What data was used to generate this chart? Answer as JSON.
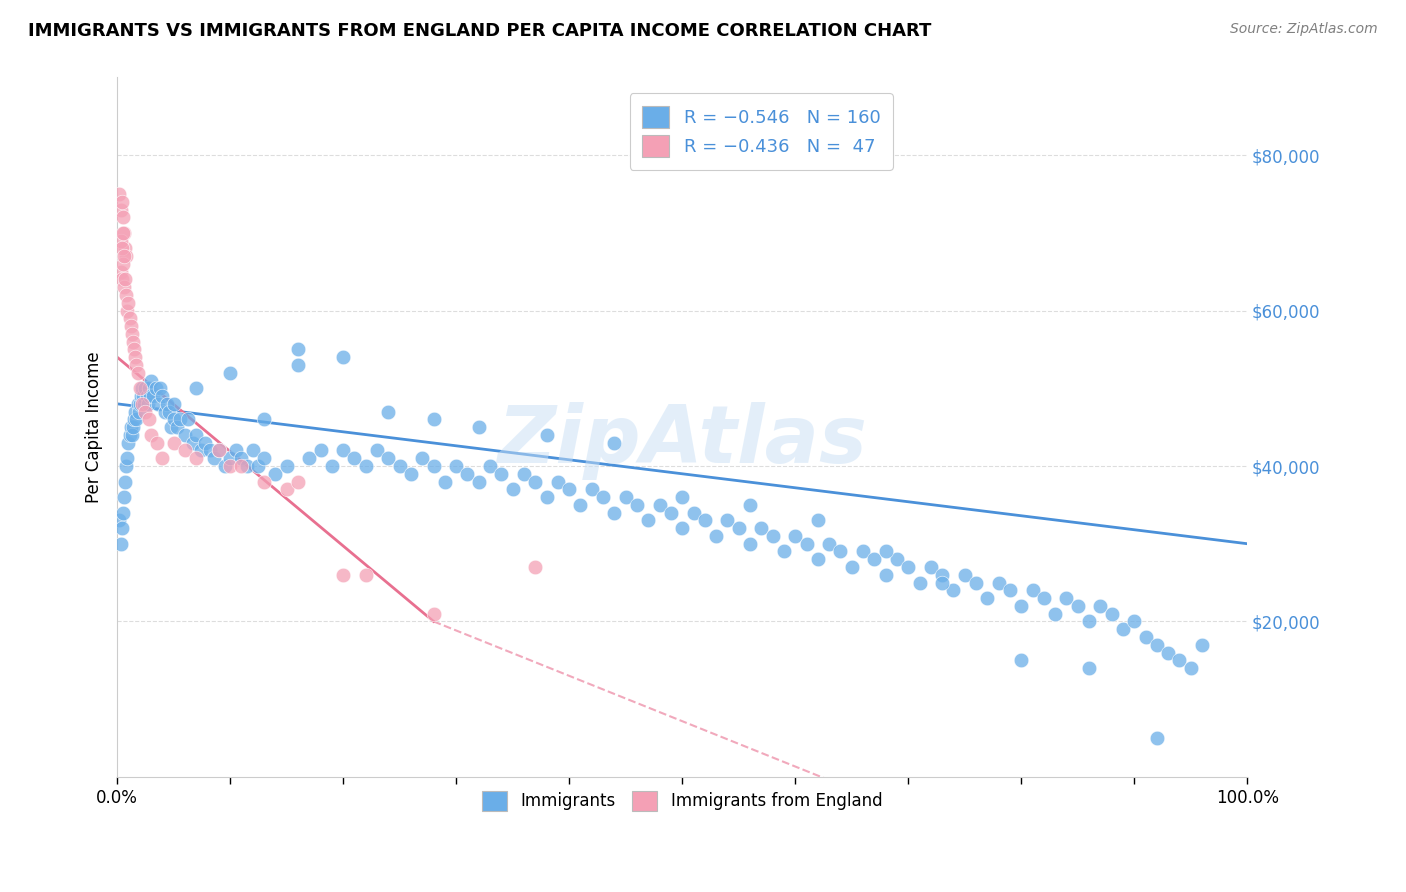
{
  "title": "IMMIGRANTS VS IMMIGRANTS FROM ENGLAND PER CAPITA INCOME CORRELATION CHART",
  "source": "Source: ZipAtlas.com",
  "ylabel": "Per Capita Income",
  "xlim": [
    0,
    1.0
  ],
  "ylim": [
    0,
    90000
  ],
  "xtick_labels": [
    "0.0%",
    "100.0%"
  ],
  "ytick_values": [
    20000,
    40000,
    60000,
    80000
  ],
  "ytick_labels": [
    "$20,000",
    "$40,000",
    "$60,000",
    "$80,000"
  ],
  "blue_color": "#6aaee8",
  "pink_color": "#f4a0b5",
  "blue_line_color": "#4a90d9",
  "pink_line_color": "#e87090",
  "grid_color": "#dddddd",
  "background_color": "#ffffff",
  "watermark": "ZipAtlas",
  "blue_trend": [
    0.0,
    48000,
    1.0,
    30000
  ],
  "pink_trend_solid": [
    0.0,
    54000,
    0.28,
    20000
  ],
  "pink_trend_dash": [
    0.28,
    20000,
    1.0,
    -22000
  ],
  "blue_scatter_x": [
    0.002,
    0.003,
    0.004,
    0.005,
    0.006,
    0.007,
    0.008,
    0.009,
    0.01,
    0.011,
    0.012,
    0.013,
    0.014,
    0.015,
    0.016,
    0.017,
    0.018,
    0.019,
    0.02,
    0.021,
    0.022,
    0.023,
    0.024,
    0.025,
    0.026,
    0.027,
    0.028,
    0.029,
    0.03,
    0.032,
    0.034,
    0.036,
    0.038,
    0.04,
    0.042,
    0.044,
    0.046,
    0.048,
    0.05,
    0.053,
    0.056,
    0.06,
    0.063,
    0.067,
    0.07,
    0.074,
    0.078,
    0.082,
    0.086,
    0.09,
    0.095,
    0.1,
    0.105,
    0.11,
    0.115,
    0.12,
    0.125,
    0.13,
    0.14,
    0.15,
    0.16,
    0.17,
    0.18,
    0.19,
    0.2,
    0.21,
    0.22,
    0.23,
    0.24,
    0.25,
    0.26,
    0.27,
    0.28,
    0.29,
    0.3,
    0.31,
    0.32,
    0.33,
    0.34,
    0.35,
    0.36,
    0.37,
    0.38,
    0.39,
    0.4,
    0.41,
    0.42,
    0.43,
    0.44,
    0.45,
    0.46,
    0.47,
    0.48,
    0.49,
    0.5,
    0.51,
    0.52,
    0.53,
    0.54,
    0.55,
    0.56,
    0.57,
    0.58,
    0.59,
    0.6,
    0.61,
    0.62,
    0.63,
    0.64,
    0.65,
    0.66,
    0.67,
    0.68,
    0.69,
    0.7,
    0.71,
    0.72,
    0.73,
    0.74,
    0.75,
    0.76,
    0.77,
    0.78,
    0.79,
    0.8,
    0.81,
    0.82,
    0.83,
    0.84,
    0.85,
    0.86,
    0.87,
    0.88,
    0.89,
    0.9,
    0.91,
    0.92,
    0.93,
    0.94,
    0.95,
    0.05,
    0.07,
    0.1,
    0.13,
    0.16,
    0.2,
    0.24,
    0.28,
    0.32,
    0.38,
    0.44,
    0.5,
    0.56,
    0.62,
    0.68,
    0.73,
    0.8,
    0.86,
    0.92,
    0.96
  ],
  "blue_scatter_y": [
    33000,
    30000,
    32000,
    34000,
    36000,
    38000,
    40000,
    41000,
    43000,
    44000,
    45000,
    44000,
    45000,
    46000,
    47000,
    46000,
    48000,
    47000,
    48000,
    49000,
    50000,
    49000,
    48000,
    50000,
    49000,
    48000,
    50000,
    49000,
    51000,
    49000,
    50000,
    48000,
    50000,
    49000,
    47000,
    48000,
    47000,
    45000,
    46000,
    45000,
    46000,
    44000,
    46000,
    43000,
    44000,
    42000,
    43000,
    42000,
    41000,
    42000,
    40000,
    41000,
    42000,
    41000,
    40000,
    42000,
    40000,
    41000,
    39000,
    40000,
    55000,
    41000,
    42000,
    40000,
    42000,
    41000,
    40000,
    42000,
    41000,
    40000,
    39000,
    41000,
    40000,
    38000,
    40000,
    39000,
    38000,
    40000,
    39000,
    37000,
    39000,
    38000,
    36000,
    38000,
    37000,
    35000,
    37000,
    36000,
    34000,
    36000,
    35000,
    33000,
    35000,
    34000,
    32000,
    34000,
    33000,
    31000,
    33000,
    32000,
    30000,
    32000,
    31000,
    29000,
    31000,
    30000,
    28000,
    30000,
    29000,
    27000,
    29000,
    28000,
    26000,
    28000,
    27000,
    25000,
    27000,
    26000,
    24000,
    26000,
    25000,
    23000,
    25000,
    24000,
    22000,
    24000,
    23000,
    21000,
    23000,
    22000,
    20000,
    22000,
    21000,
    19000,
    20000,
    18000,
    17000,
    16000,
    15000,
    14000,
    48000,
    50000,
    52000,
    46000,
    53000,
    54000,
    47000,
    46000,
    45000,
    44000,
    43000,
    36000,
    35000,
    33000,
    29000,
    25000,
    15000,
    14000,
    5000,
    17000
  ],
  "pink_scatter_x": [
    0.002,
    0.003,
    0.004,
    0.005,
    0.006,
    0.007,
    0.008,
    0.003,
    0.004,
    0.005,
    0.006,
    0.007,
    0.008,
    0.009,
    0.01,
    0.011,
    0.012,
    0.013,
    0.014,
    0.015,
    0.016,
    0.017,
    0.018,
    0.003,
    0.004,
    0.005,
    0.006,
    0.02,
    0.022,
    0.025,
    0.028,
    0.03,
    0.035,
    0.04,
    0.05,
    0.06,
    0.07,
    0.09,
    0.1,
    0.11,
    0.13,
    0.15,
    0.16,
    0.2,
    0.22,
    0.28,
    0.37
  ],
  "pink_scatter_y": [
    75000,
    73000,
    74000,
    72000,
    70000,
    68000,
    67000,
    65000,
    64000,
    66000,
    63000,
    64000,
    62000,
    60000,
    61000,
    59000,
    58000,
    57000,
    56000,
    55000,
    54000,
    53000,
    52000,
    69000,
    68000,
    70000,
    67000,
    50000,
    48000,
    47000,
    46000,
    44000,
    43000,
    41000,
    43000,
    42000,
    41000,
    42000,
    40000,
    40000,
    38000,
    37000,
    38000,
    26000,
    26000,
    21000,
    27000
  ]
}
